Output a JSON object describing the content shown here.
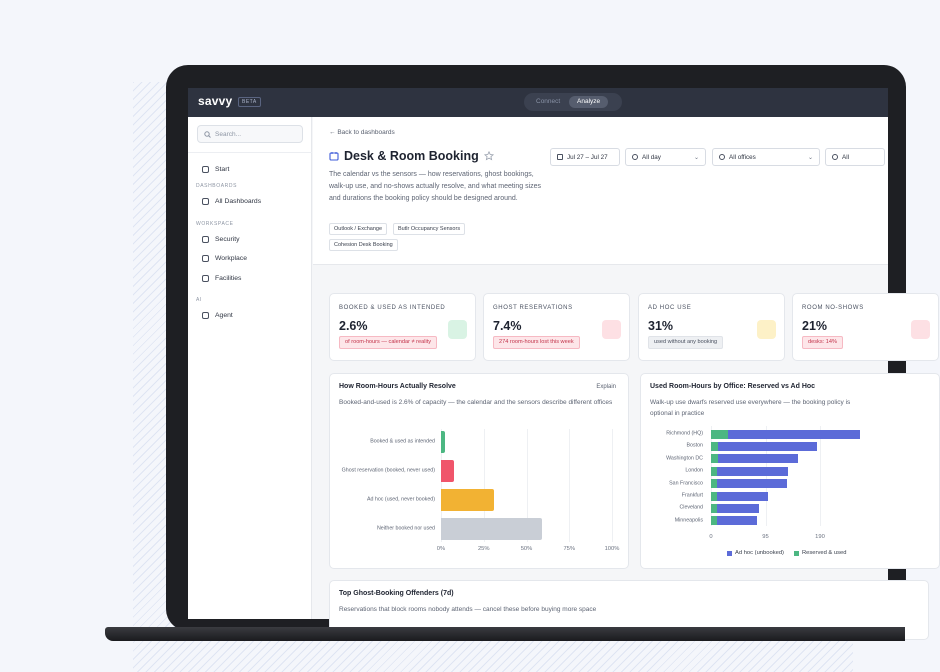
{
  "nav": {
    "logo": "savvy",
    "badge": "BETA",
    "tabs": [
      "Connect",
      "Analyze"
    ]
  },
  "sidebar": {
    "search": "Search...",
    "start": "Start",
    "sections": [
      {
        "title": "DASHBOARDS",
        "items": [
          "All Dashboards"
        ]
      },
      {
        "title": "WORKSPACE",
        "items": [
          "Security",
          "Workplace",
          "Facilities"
        ]
      },
      {
        "title": "AI",
        "items": [
          "Agent"
        ]
      }
    ]
  },
  "header": {
    "back": "Back to dashboards",
    "title": "Desk & Room Booking",
    "description": "The calendar vs the sensors — how reservations, ghost bookings, walk-up use, and no-shows actually resolve, and what meeting sizes and durations the booking policy should be designed around.",
    "tags": [
      "Outlook / Exchange",
      "Butlr Occupancy Sensors",
      "Cohesion Desk Booking"
    ],
    "filters": [
      "Jul 27 – Jul 27",
      "All day",
      "All offices",
      "All"
    ]
  },
  "kpis": [
    {
      "label": "BOOKED & USED AS INTENDED",
      "value": "2.6%",
      "note": "of room-hours — calendar ≠ reality",
      "tone": "red",
      "icon": "#d9f3e4"
    },
    {
      "label": "GHOST RESERVATIONS",
      "value": "7.4%",
      "note": "274 room-hours lost this week",
      "tone": "red",
      "icon": "#fde0e4"
    },
    {
      "label": "AD HOC USE",
      "value": "31%",
      "note": "used without any booking",
      "tone": "gray",
      "icon": "#fdf1c7"
    },
    {
      "label": "ROOM NO-SHOWS",
      "value": "21%",
      "note": "desks: 14%",
      "tone": "red",
      "icon": "#fde0e4"
    }
  ],
  "chart_data": [
    {
      "type": "bar",
      "orientation": "horizontal",
      "title": "How Room-Hours Actually Resolve",
      "action": "Explain",
      "subtitle": "Booked-and-used is 2.6% of capacity — the calendar and the sensors describe different offices",
      "categories": [
        "Booked & used as intended",
        "Ghost reservation (booked, never used)",
        "Ad hoc (used, never booked)",
        "Neither booked nor used"
      ],
      "values": [
        2.6,
        7.4,
        31,
        59
      ],
      "colors": [
        "#4cb782",
        "#f0556b",
        "#f2b233",
        "#c9ced6"
      ],
      "xlim": [
        0,
        100
      ],
      "xticks": [
        {
          "value": 0,
          "label": "0%"
        },
        {
          "value": 25,
          "label": "25%"
        },
        {
          "value": 50,
          "label": "50%"
        },
        {
          "value": 75,
          "label": "75%"
        },
        {
          "value": 100,
          "label": "100%"
        }
      ],
      "grid": true
    },
    {
      "type": "stacked_bar",
      "orientation": "horizontal",
      "title": "Used Room-Hours by Office: Reserved vs Ad Hoc",
      "subtitle": "Walk-up use dwarfs reserved use everywhere — the booking policy is optional in practice",
      "categories": [
        "Richmond (HQ)",
        "Boston",
        "Washington DC",
        "London",
        "San Francisco",
        "Frankfurt",
        "Cleveland",
        "Minneapolis"
      ],
      "series": [
        {
          "name": "Reserved & used",
          "color": "#4cb782",
          "values": [
            30,
            12,
            12,
            10,
            10,
            10,
            10,
            10
          ]
        },
        {
          "name": "Ad hoc (unbooked)",
          "color": "#5c6bd8",
          "values": [
            230,
            173,
            140,
            124,
            122,
            89,
            74,
            70
          ]
        }
      ],
      "xlim": [
        0,
        285
      ],
      "xticks": [
        0,
        95,
        190
      ],
      "grid": true,
      "legend": "bottom"
    }
  ],
  "table_card": {
    "title": "Top Ghost-Booking Offenders (7d)",
    "subtitle": "Reservations that block rooms nobody attends — cancel these before buying more space"
  }
}
